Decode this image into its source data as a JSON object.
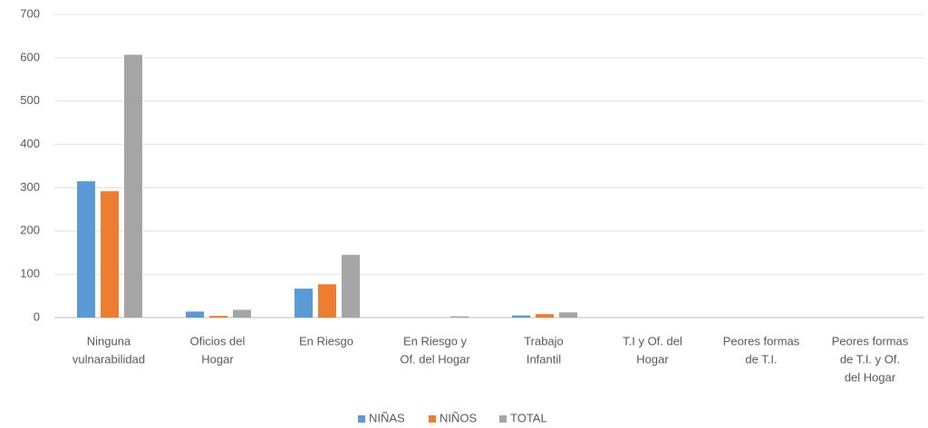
{
  "chart_data": {
    "type": "bar",
    "categories": [
      [
        "Ninguna",
        "vulnarabilidad"
      ],
      [
        "Oficios del",
        "Hogar"
      ],
      [
        "En Riesgo"
      ],
      [
        "En Riesgo y",
        "Of. del Hogar"
      ],
      [
        "Trabajo",
        "Infantil"
      ],
      [
        "T.I y Of. del",
        "Hogar"
      ],
      [
        "Peores formas",
        "de T.I."
      ],
      [
        "Peores formas",
        "de T.I. y Of.",
        "del Hogar"
      ]
    ],
    "series": [
      {
        "name": "NIÑAS",
        "color": "#5b9bd5",
        "values": [
          315,
          14,
          67,
          0,
          5,
          0,
          0,
          0
        ]
      },
      {
        "name": "NIÑOS",
        "color": "#ed7d31",
        "values": [
          292,
          4,
          77,
          0,
          8,
          0,
          0,
          0
        ]
      },
      {
        "name": "TOTAL",
        "color": "#a5a5a5",
        "values": [
          607,
          18,
          145,
          3,
          12,
          0,
          0,
          0
        ]
      }
    ],
    "ylim": [
      0,
      700
    ],
    "yticks": [
      0,
      100,
      200,
      300,
      400,
      500,
      600,
      700
    ],
    "grid": true,
    "legend": "bottom"
  }
}
